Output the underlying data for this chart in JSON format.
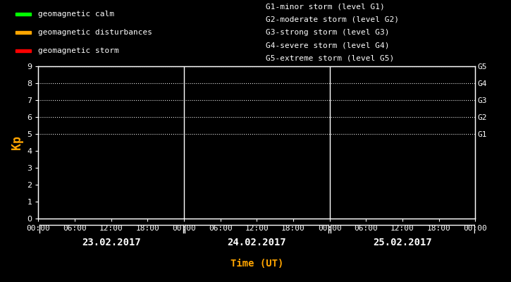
{
  "bg_color": "#000000",
  "fg_color": "#ffffff",
  "orange_color": "#ffa500",
  "title": "Time (UT)",
  "ylabel": "Kp",
  "ylim": [
    0,
    9
  ],
  "yticks": [
    0,
    1,
    2,
    3,
    4,
    5,
    6,
    7,
    8,
    9
  ],
  "y_dotted_lines": [
    5,
    6,
    7,
    8,
    9
  ],
  "g_labels": {
    "5": "G1",
    "6": "G2",
    "7": "G3",
    "8": "G4",
    "9": "G5"
  },
  "dates": [
    "23.02.2017",
    "24.02.2017",
    "25.02.2017"
  ],
  "legend_items": [
    {
      "label": "geomagnetic calm",
      "color": "#00ff00"
    },
    {
      "label": "geomagnetic disturbances",
      "color": "#ffa500"
    },
    {
      "label": "geomagnetic storm",
      "color": "#ff0000"
    }
  ],
  "right_legend": [
    "G1-minor storm (level G1)",
    "G2-moderate storm (level G2)",
    "G3-strong storm (level G3)",
    "G4-severe storm (level G4)",
    "G5-extreme storm (level G5)"
  ],
  "num_days": 3,
  "legend_font_size": 8,
  "axis_font_size": 8,
  "date_font_size": 10,
  "title_font_size": 10
}
